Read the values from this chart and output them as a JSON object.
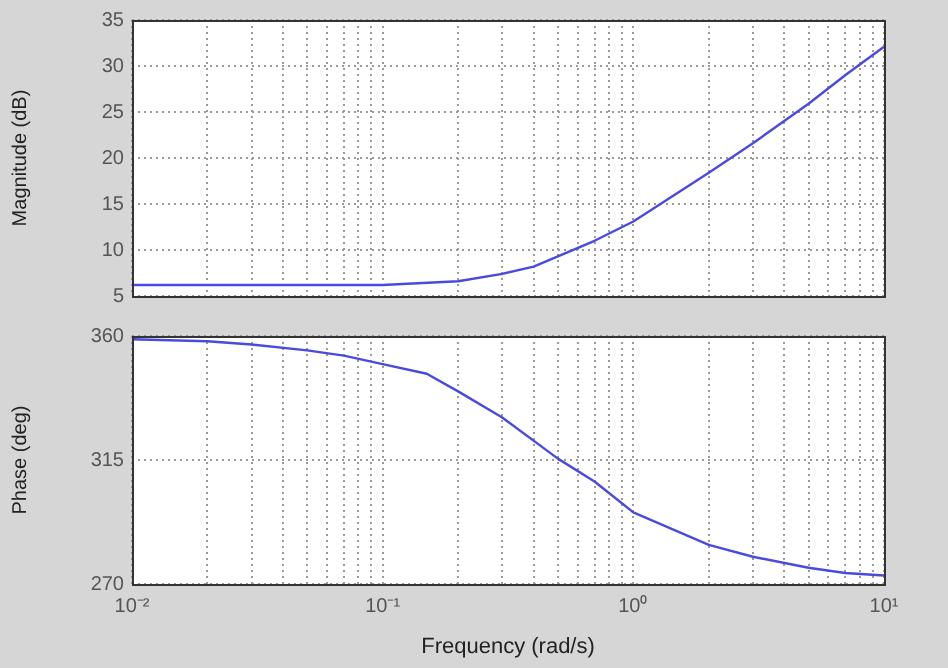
{
  "chart_data": [
    {
      "type": "line",
      "ylabel": "Magnitude (dB)",
      "log": "x",
      "grid": true,
      "legend": false,
      "tick_labels": "y",
      "marker": "none",
      "line_style": "solid",
      "xlim": [
        0.01,
        10
      ],
      "xticks": [
        {
          "value": 0.01,
          "label": null
        },
        {
          "value": 0.02,
          "label": null
        },
        {
          "value": 0.03,
          "label": null
        },
        {
          "value": 0.04,
          "label": null
        },
        {
          "value": 0.05,
          "label": null
        },
        {
          "value": 0.06,
          "label": null
        },
        {
          "value": 0.07,
          "label": null
        },
        {
          "value": 0.08,
          "label": null
        },
        {
          "value": 0.09,
          "label": null
        },
        {
          "value": 0.1,
          "label": null
        },
        {
          "value": 0.2,
          "label": null
        },
        {
          "value": 0.3,
          "label": null
        },
        {
          "value": 0.4,
          "label": null
        },
        {
          "value": 0.5,
          "label": null
        },
        {
          "value": 0.6,
          "label": null
        },
        {
          "value": 0.7,
          "label": null
        },
        {
          "value": 0.8,
          "label": null
        },
        {
          "value": 0.9,
          "label": null
        },
        {
          "value": 1,
          "label": null
        },
        {
          "value": 2,
          "label": null
        },
        {
          "value": 3,
          "label": null
        },
        {
          "value": 4,
          "label": null
        },
        {
          "value": 5,
          "label": null
        },
        {
          "value": 6,
          "label": null
        },
        {
          "value": 7,
          "label": null
        },
        {
          "value": 8,
          "label": null
        },
        {
          "value": 9,
          "label": null
        },
        {
          "value": 10,
          "label": null
        }
      ],
      "ylim": [
        5,
        35
      ],
      "yticks": [
        5,
        10,
        15,
        20,
        25,
        30,
        35
      ],
      "series": [
        {
          "color": "#4a4ae0",
          "x": [
            0.01,
            0.03,
            0.1,
            0.12,
            0.2,
            0.3,
            0.4,
            0.5,
            0.7,
            1,
            2,
            3,
            5,
            7,
            10
          ],
          "values": [
            6.2,
            6.2,
            6.2,
            6.3,
            6.6,
            7.4,
            8.2,
            9.3,
            11.0,
            13.1,
            18.4,
            21.6,
            25.9,
            29.0,
            32.1
          ]
        }
      ]
    },
    {
      "type": "line",
      "xlabel": "Frequency (rad/s)",
      "ylabel": "Phase (deg)",
      "log": "x",
      "grid": true,
      "legend": false,
      "marker": "none",
      "line_style": "solid",
      "xlim": [
        0.01,
        10
      ],
      "xticks": [
        {
          "value": 0.01,
          "label": "10⁻²"
        },
        {
          "value": 0.02,
          "label": null
        },
        {
          "value": 0.03,
          "label": null
        },
        {
          "value": 0.04,
          "label": null
        },
        {
          "value": 0.05,
          "label": null
        },
        {
          "value": 0.06,
          "label": null
        },
        {
          "value": 0.07,
          "label": null
        },
        {
          "value": 0.08,
          "label": null
        },
        {
          "value": 0.09,
          "label": null
        },
        {
          "value": 0.1,
          "label": "10⁻¹"
        },
        {
          "value": 0.2,
          "label": null
        },
        {
          "value": 0.3,
          "label": null
        },
        {
          "value": 0.4,
          "label": null
        },
        {
          "value": 0.5,
          "label": null
        },
        {
          "value": 0.6,
          "label": null
        },
        {
          "value": 0.7,
          "label": null
        },
        {
          "value": 0.8,
          "label": null
        },
        {
          "value": 0.9,
          "label": null
        },
        {
          "value": 1,
          "label": "10⁰"
        },
        {
          "value": 2,
          "label": null
        },
        {
          "value": 3,
          "label": null
        },
        {
          "value": 4,
          "label": null
        },
        {
          "value": 5,
          "label": null
        },
        {
          "value": 6,
          "label": null
        },
        {
          "value": 7,
          "label": null
        },
        {
          "value": 8,
          "label": null
        },
        {
          "value": 9,
          "label": null
        },
        {
          "value": 10,
          "label": "10¹"
        }
      ],
      "ylim": [
        270,
        360
      ],
      "yticks": [
        270,
        315,
        360
      ],
      "series": [
        {
          "color": "#4a4ae0",
          "x": [
            0.01,
            0.02,
            0.03,
            0.05,
            0.07,
            0.1,
            0.15,
            0.2,
            0.3,
            0.5,
            0.7,
            1,
            2,
            3,
            5,
            7,
            10
          ],
          "values": [
            358.8,
            358.1,
            356.9,
            354.8,
            352.9,
            349.8,
            346.3,
            339.9,
            330.4,
            315.5,
            307.2,
            296.0,
            284.2,
            279.9,
            275.9,
            274.0,
            273.1
          ]
        }
      ]
    }
  ]
}
